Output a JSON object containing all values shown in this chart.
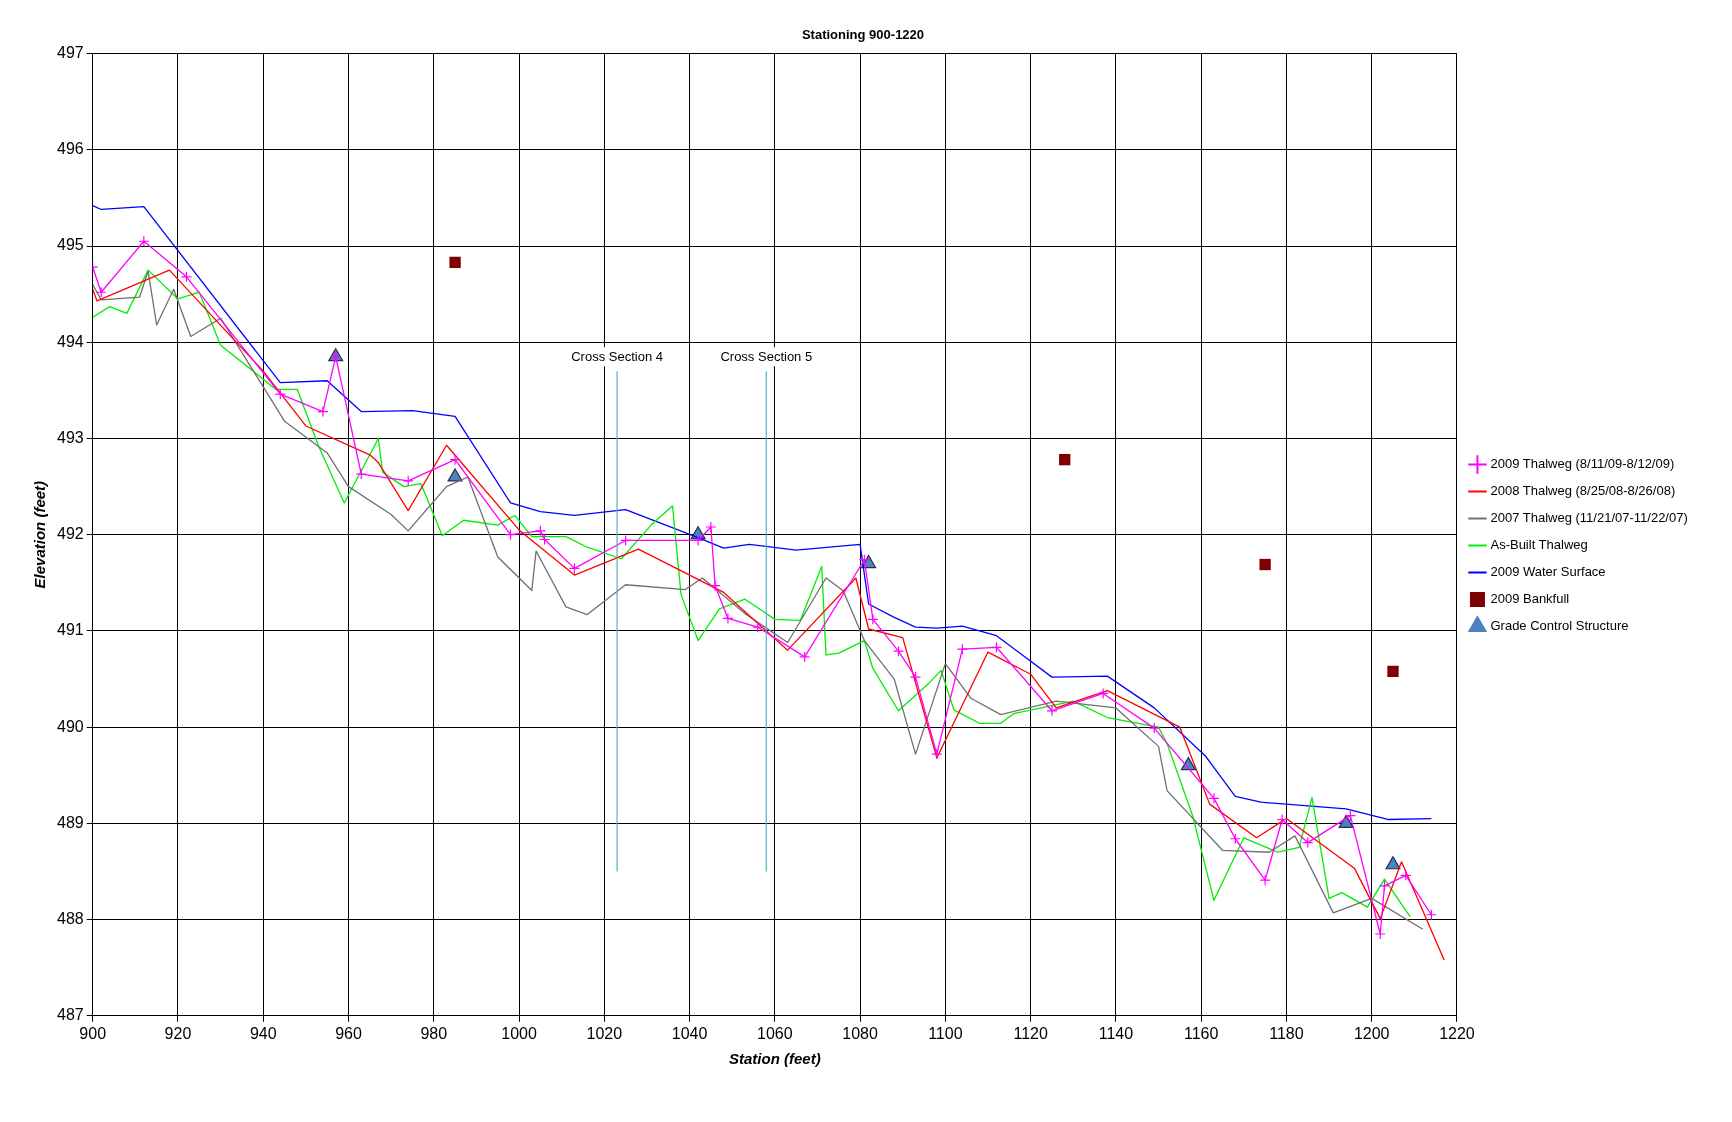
{
  "chart_data": {
    "type": "line",
    "title": "Stationing 900-1220",
    "xlabel": "Station (feet)",
    "ylabel": "Elevation (feet)",
    "xlim": [
      900,
      1220
    ],
    "xticks": [
      900,
      920,
      940,
      960,
      980,
      1000,
      1020,
      1040,
      1060,
      1080,
      1100,
      1120,
      1140,
      1160,
      1180,
      1200,
      1220
    ],
    "ylim": [
      487,
      497
    ],
    "yticks": [
      487,
      488,
      489,
      490,
      491,
      492,
      493,
      494,
      495,
      496,
      497
    ],
    "grid": true,
    "legend": "right",
    "marker": "none",
    "line_style": "solid",
    "ref_lines": [
      {
        "axis": "x",
        "value": 1023,
        "label": "Cross Section 4",
        "color": "#4fb3c8"
      },
      {
        "axis": "x",
        "value": 1058,
        "label": "Cross Section 5",
        "color": "#4fb3c8"
      }
    ],
    "series": [
      {
        "name": "2009 Thalweg (8/11/09-8/12/09)",
        "color": "#ff00ff",
        "marker": "cross",
        "x": [
          900,
          902,
          912,
          922,
          944,
          954,
          957,
          963,
          974,
          985,
          998,
          1005,
          1006,
          1013,
          1025,
          1042,
          1045,
          1046,
          1049,
          1056,
          1067,
          1081,
          1083,
          1089,
          1093,
          1098,
          1104,
          1112,
          1125,
          1137,
          1149,
          1163,
          1168,
          1175,
          1179,
          1185,
          1195,
          1202,
          1203,
          1208,
          1214
        ],
        "values": [
          494.78,
          494.52,
          495.05,
          494.68,
          493.46,
          493.28,
          493.85,
          492.63,
          492.56,
          492.78,
          492.0,
          492.04,
          491.95,
          491.65,
          491.94,
          491.94,
          492.08,
          491.47,
          491.13,
          491.04,
          490.73,
          491.74,
          491.12,
          490.79,
          490.52,
          489.72,
          490.81,
          490.83,
          490.17,
          490.35,
          489.99,
          489.26,
          488.84,
          488.41,
          489.04,
          488.8,
          489.08,
          487.85,
          488.35,
          488.46,
          488.05
        ]
      },
      {
        "name": "2008 Thalweg (8/25/08-8/26/08)",
        "color": "#ff0000",
        "x": [
          900,
          901,
          918,
          940,
          950,
          965,
          967,
          974,
          983,
          1000,
          1013,
          1028,
          1048,
          1063,
          1079,
          1082,
          1090,
          1098,
          1110,
          1120,
          1126,
          1138,
          1155,
          1162,
          1173,
          1180,
          1196,
          1202,
          1207,
          1217
        ],
        "values": [
          494.55,
          494.43,
          494.75,
          493.7,
          493.13,
          492.83,
          492.75,
          492.25,
          492.93,
          492.05,
          491.58,
          491.85,
          491.4,
          490.8,
          491.55,
          491.02,
          490.93,
          489.68,
          490.78,
          490.55,
          490.2,
          490.38,
          490.0,
          489.2,
          488.85,
          489.05,
          488.53,
          488.01,
          488.6,
          487.58
        ]
      },
      {
        "name": "2007 Thalweg (11/21/07-11/22/07)",
        "color": "#707070",
        "x": [
          900,
          902,
          911,
          913,
          915,
          919,
          923,
          930,
          945,
          955,
          960,
          970,
          974,
          983,
          988,
          995,
          1003,
          1004,
          1011,
          1016,
          1025,
          1039,
          1043,
          1053,
          1063,
          1072,
          1076,
          1081,
          1088,
          1093,
          1100,
          1106,
          1113,
          1126,
          1140,
          1150,
          1152,
          1165,
          1176,
          1182,
          1191,
          1200,
          1212
        ],
        "values": [
          494.6,
          494.44,
          494.47,
          494.74,
          494.18,
          494.55,
          494.06,
          494.25,
          493.18,
          492.85,
          492.5,
          492.21,
          492.04,
          492.5,
          492.6,
          491.77,
          491.42,
          491.83,
          491.25,
          491.17,
          491.48,
          491.43,
          491.55,
          491.18,
          490.88,
          491.55,
          491.42,
          490.9,
          490.5,
          489.72,
          490.66,
          490.3,
          490.13,
          490.27,
          490.2,
          489.8,
          489.34,
          488.72,
          488.7,
          488.87,
          488.07,
          488.22,
          487.9
        ]
      },
      {
        "name": "As-Built Thalweg",
        "color": "#00ee00",
        "x": [
          900,
          904,
          908,
          913,
          920,
          925,
          930,
          943,
          948,
          953,
          959,
          967,
          968,
          973,
          977,
          982,
          987,
          995,
          999,
          1003,
          1011,
          1016,
          1024,
          1031,
          1036,
          1038,
          1042,
          1047,
          1053,
          1060,
          1066,
          1071,
          1072,
          1075,
          1081,
          1083,
          1089,
          1096,
          1099,
          1102,
          1108,
          1113,
          1116,
          1130,
          1138,
          1150,
          1152,
          1158,
          1163,
          1170,
          1178,
          1183,
          1186,
          1190,
          1193,
          1199,
          1203,
          1209
        ],
        "values": [
          494.26,
          494.37,
          494.3,
          494.75,
          494.45,
          494.52,
          493.97,
          493.51,
          493.51,
          492.92,
          492.33,
          493.0,
          492.65,
          492.5,
          492.53,
          491.99,
          492.15,
          492.1,
          492.2,
          491.98,
          491.98,
          491.87,
          491.75,
          492.1,
          492.3,
          491.38,
          490.9,
          491.23,
          491.33,
          491.12,
          491.11,
          491.67,
          490.75,
          490.77,
          490.9,
          490.61,
          490.17,
          490.45,
          490.59,
          490.18,
          490.04,
          490.04,
          490.14,
          490.27,
          490.1,
          490.0,
          489.83,
          489.08,
          488.2,
          488.85,
          488.7,
          488.75,
          489.27,
          488.22,
          488.28,
          488.13,
          488.42,
          488.03
        ]
      },
      {
        "name": "2009 Water Surface",
        "color": "#0000ff",
        "x": [
          900,
          902,
          912,
          944,
          955,
          963,
          975,
          985,
          998,
          1005,
          1013,
          1025,
          1042,
          1048,
          1054,
          1065,
          1080,
          1082,
          1088,
          1093,
          1098,
          1104,
          1112,
          1125,
          1138,
          1149,
          1161,
          1168,
          1174,
          1194,
          1204,
          1214
        ],
        "values": [
          495.42,
          495.38,
          495.41,
          493.58,
          493.6,
          493.28,
          493.29,
          493.23,
          492.33,
          492.24,
          492.2,
          492.26,
          491.97,
          491.86,
          491.9,
          491.84,
          491.9,
          491.28,
          491.14,
          491.04,
          491.03,
          491.05,
          490.95,
          490.52,
          490.53,
          490.2,
          489.7,
          489.28,
          489.22,
          489.15,
          489.04,
          489.05
        ]
      },
      {
        "name": "2009 Bankfull",
        "type": "scatter",
        "marker": "square",
        "color": "#800000",
        "x": [
          985,
          1128,
          1175,
          1205
        ],
        "values": [
          494.83,
          492.78,
          491.69,
          490.58
        ]
      },
      {
        "name": "Grade Control Structure",
        "type": "scatter",
        "marker": "triangle",
        "color": "#4f81bd",
        "x": [
          957,
          985,
          1042,
          1082,
          1157,
          1194,
          1205
        ],
        "values": [
          493.85,
          492.6,
          492.0,
          491.7,
          489.6,
          489.0,
          488.57
        ]
      }
    ]
  }
}
